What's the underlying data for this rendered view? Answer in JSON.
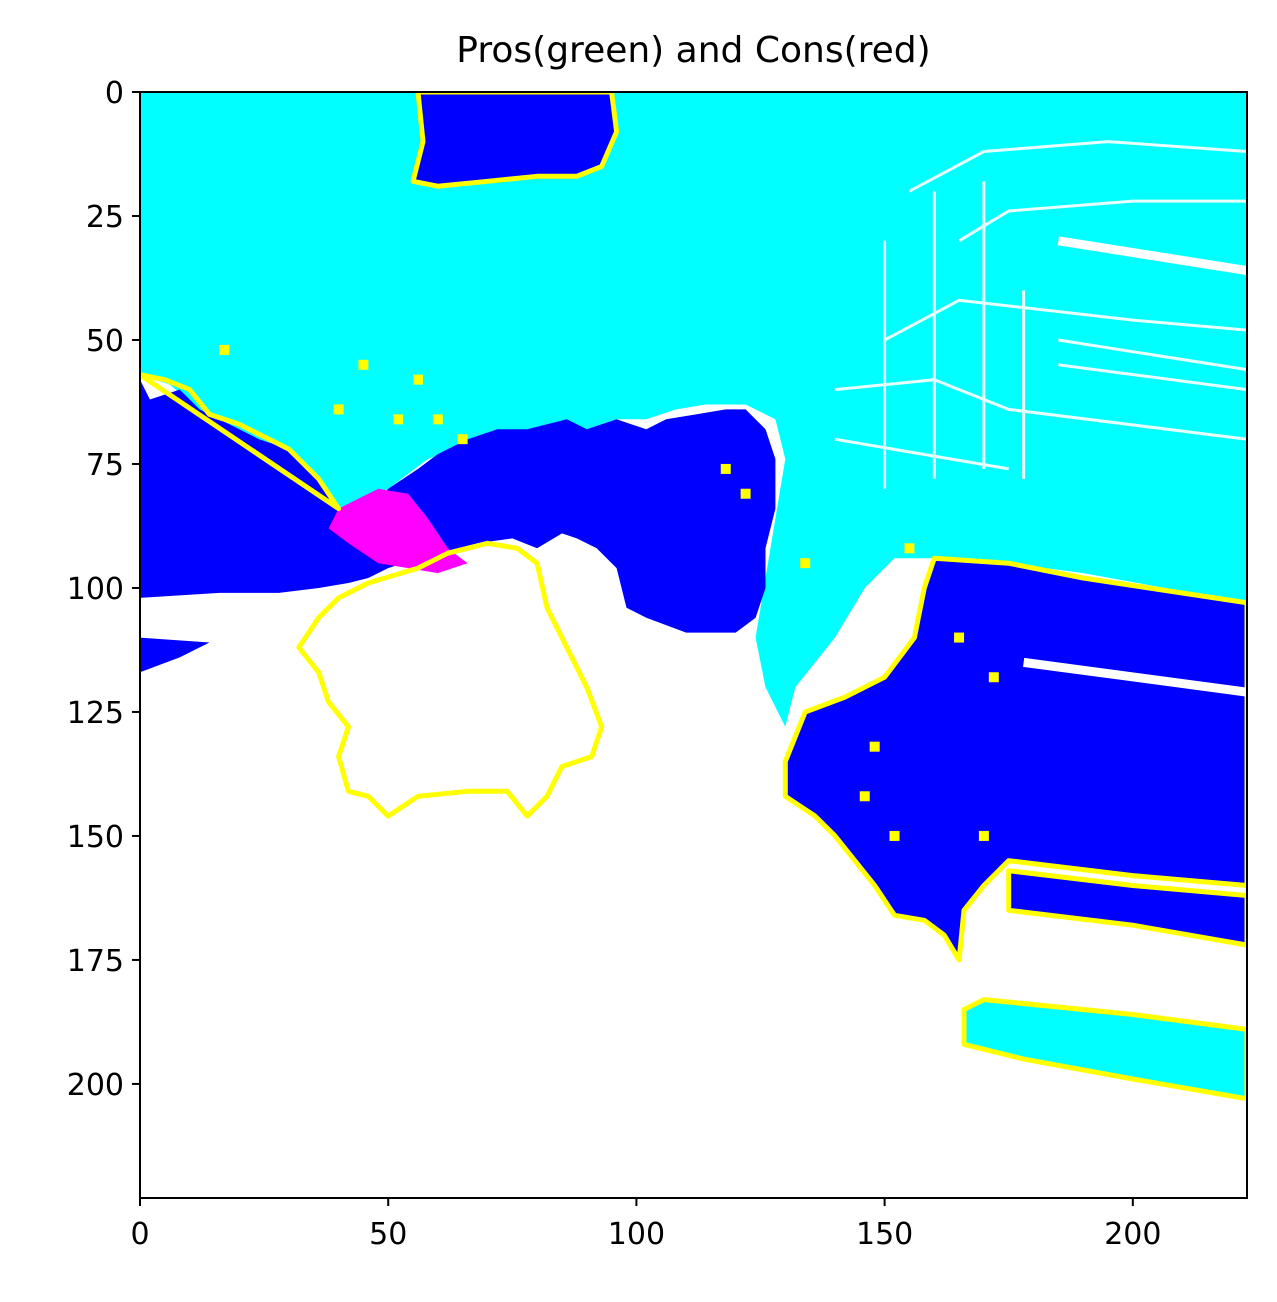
{
  "chart_data": {
    "type": "heatmap",
    "title": "Pros(green) and Cons(red)",
    "xlabel": "",
    "ylabel": "",
    "xlim": [
      0,
      223
    ],
    "ylim": [
      223,
      0
    ],
    "x_ticks": [
      0,
      50,
      100,
      150,
      200
    ],
    "y_ticks": [
      0,
      25,
      50,
      75,
      100,
      125,
      150,
      175,
      200
    ],
    "x_tick_labels": [
      "0",
      "50",
      "100",
      "150",
      "200"
    ],
    "y_tick_labels": [
      "0",
      "25",
      "50",
      "75",
      "100",
      "125",
      "150",
      "175",
      "200"
    ],
    "grid": false,
    "colors": {
      "sky": "#00ffff",
      "blue_region": "#0000ff",
      "magenta_region": "#ff00ff",
      "outline": "#ffff00",
      "background": "#ffffff"
    },
    "regions": [
      {
        "name": "top-blue-blob",
        "color": "blue_region",
        "outline": true,
        "points": [
          [
            56,
            0
          ],
          [
            95,
            0
          ],
          [
            96,
            8
          ],
          [
            93,
            15
          ],
          [
            88,
            17
          ],
          [
            80,
            17
          ],
          [
            70,
            18
          ],
          [
            60,
            19
          ],
          [
            55,
            18
          ],
          [
            57,
            10
          ]
        ]
      },
      {
        "name": "left-blue-band",
        "color": "blue_region",
        "outline": false,
        "points": [
          [
            0,
            58
          ],
          [
            2,
            62
          ],
          [
            8,
            60
          ],
          [
            12,
            64
          ],
          [
            18,
            67
          ],
          [
            24,
            70
          ],
          [
            30,
            72
          ],
          [
            36,
            78
          ],
          [
            40,
            84
          ],
          [
            45,
            85
          ],
          [
            50,
            80
          ],
          [
            56,
            76
          ],
          [
            60,
            73
          ],
          [
            66,
            70
          ],
          [
            72,
            68
          ],
          [
            78,
            68
          ],
          [
            86,
            66
          ],
          [
            90,
            68
          ],
          [
            96,
            66
          ],
          [
            102,
            68
          ],
          [
            106,
            66
          ],
          [
            112,
            65
          ],
          [
            118,
            64
          ],
          [
            122,
            64
          ],
          [
            126,
            68
          ],
          [
            128,
            74
          ],
          [
            128,
            84
          ],
          [
            126,
            92
          ],
          [
            126,
            100
          ],
          [
            124,
            106
          ],
          [
            120,
            109
          ],
          [
            110,
            109
          ],
          [
            102,
            106
          ],
          [
            98,
            104
          ],
          [
            96,
            96
          ],
          [
            92,
            92
          ],
          [
            88,
            90
          ],
          [
            85,
            89
          ],
          [
            80,
            92
          ],
          [
            75,
            90
          ],
          [
            68,
            91
          ],
          [
            62,
            93
          ],
          [
            56,
            94
          ],
          [
            50,
            96
          ],
          [
            46,
            98
          ],
          [
            42,
            99
          ],
          [
            36,
            100
          ],
          [
            28,
            101
          ],
          [
            16,
            101
          ],
          [
            0,
            102
          ]
        ]
      },
      {
        "name": "left-small-blue",
        "color": "blue_region",
        "outline": false,
        "points": [
          [
            0,
            110
          ],
          [
            14,
            111
          ],
          [
            8,
            114
          ],
          [
            0,
            117
          ]
        ]
      },
      {
        "name": "right-blue-mid",
        "color": "blue_region",
        "outline": true,
        "points": [
          [
            160,
            94
          ],
          [
            175,
            95
          ],
          [
            190,
            98
          ],
          [
            223,
            103
          ],
          [
            223,
            160
          ],
          [
            200,
            158
          ],
          [
            175,
            155
          ],
          [
            170,
            160
          ],
          [
            166,
            165
          ],
          [
            165,
            175
          ],
          [
            162,
            170
          ],
          [
            158,
            167
          ],
          [
            152,
            166
          ],
          [
            148,
            160
          ],
          [
            140,
            150
          ],
          [
            136,
            146
          ],
          [
            130,
            142
          ],
          [
            130,
            135
          ],
          [
            134,
            125
          ],
          [
            142,
            122
          ],
          [
            150,
            118
          ],
          [
            156,
            110
          ],
          [
            158,
            100
          ]
        ]
      },
      {
        "name": "right-blue-lower",
        "color": "blue_region",
        "outline": true,
        "points": [
          [
            175,
            157
          ],
          [
            200,
            160
          ],
          [
            223,
            162
          ],
          [
            223,
            172
          ],
          [
            200,
            168
          ],
          [
            175,
            165
          ]
        ]
      },
      {
        "name": "bottom-cyan-strip",
        "color": "sky",
        "outline": true,
        "points": [
          [
            170,
            183
          ],
          [
            200,
            186
          ],
          [
            223,
            189
          ],
          [
            223,
            203
          ],
          [
            200,
            199
          ],
          [
            178,
            195
          ],
          [
            166,
            192
          ],
          [
            166,
            185
          ]
        ]
      },
      {
        "name": "magenta-spot",
        "color": "magenta_region",
        "outline": false,
        "points": [
          [
            40,
            84
          ],
          [
            48,
            80
          ],
          [
            54,
            81
          ],
          [
            58,
            86
          ],
          [
            62,
            92
          ],
          [
            66,
            95
          ],
          [
            60,
            97
          ],
          [
            54,
            96
          ],
          [
            48,
            95
          ],
          [
            42,
            91
          ],
          [
            38,
            88
          ]
        ]
      }
    ],
    "outlines": [
      {
        "name": "center-yellow-contour",
        "points": [
          [
            40,
            102
          ],
          [
            46,
            99
          ],
          [
            56,
            96
          ],
          [
            62,
            93
          ],
          [
            70,
            91
          ],
          [
            76,
            92
          ],
          [
            80,
            95
          ],
          [
            82,
            104
          ],
          [
            86,
            112
          ],
          [
            90,
            120
          ],
          [
            93,
            128
          ],
          [
            91,
            134
          ],
          [
            85,
            136
          ],
          [
            82,
            142
          ],
          [
            78,
            146
          ],
          [
            74,
            141
          ],
          [
            66,
            141
          ],
          [
            56,
            142
          ],
          [
            50,
            146
          ],
          [
            46,
            142
          ],
          [
            42,
            141
          ],
          [
            40,
            134
          ],
          [
            42,
            128
          ],
          [
            38,
            123
          ],
          [
            36,
            117
          ],
          [
            32,
            112
          ],
          [
            36,
            106
          ]
        ]
      },
      {
        "name": "sky-boundary-contour",
        "points": [
          [
            0,
            57
          ],
          [
            5,
            58
          ],
          [
            10,
            60
          ],
          [
            14,
            65
          ],
          [
            20,
            67
          ],
          [
            26,
            70
          ],
          [
            30,
            72
          ],
          [
            36,
            78
          ],
          [
            40,
            84
          ]
        ]
      }
    ]
  }
}
